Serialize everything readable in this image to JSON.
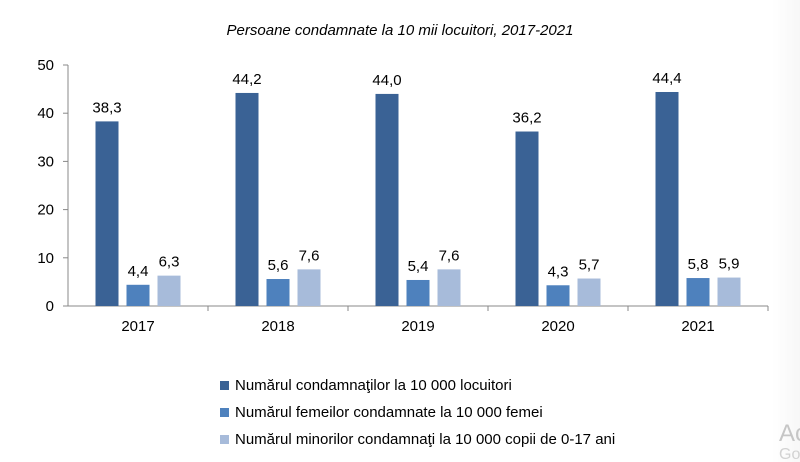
{
  "chart_data": {
    "type": "bar",
    "title": "Persoane condamnate la 10 mii locuitori, 2017-2021",
    "categories": [
      "2017",
      "2018",
      "2019",
      "2020",
      "2021"
    ],
    "series": [
      {
        "name": "Numărul condamnaţilor la 10 000 locuitori",
        "values": [
          38.3,
          44.2,
          44.0,
          36.2,
          44.4
        ],
        "labels": [
          "38,3",
          "44,2",
          "44,0",
          "36,2",
          "44,4"
        ],
        "color": "#3A6295"
      },
      {
        "name": "Numărul femeilor condamnate la 10 000 femei",
        "values": [
          4.4,
          5.6,
          5.4,
          4.3,
          5.8
        ],
        "labels": [
          "4,4",
          "5,6",
          "5,4",
          "4,3",
          "5,8"
        ],
        "color": "#4E81BD"
      },
      {
        "name": "Numărul minorilor condamnaţi la 10 000 copii de 0-17 ani",
        "values": [
          6.3,
          7.6,
          7.6,
          5.7,
          5.9
        ],
        "labels": [
          "6,3",
          "7,6",
          "7,6",
          "5,7",
          "5,9"
        ],
        "color": "#A7BBDA"
      }
    ],
    "yticks": [
      "0",
      "10",
      "20",
      "30",
      "40",
      "50"
    ],
    "ylim": [
      0,
      50
    ],
    "grid": false,
    "legend_position": "bottom"
  },
  "watermark": {
    "line1": "Ac",
    "line2": "Go"
  }
}
